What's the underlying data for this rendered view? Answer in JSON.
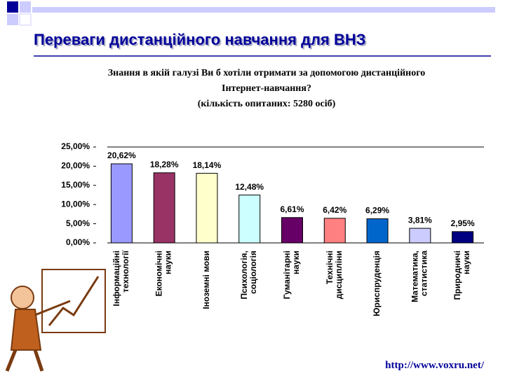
{
  "slide_title": "Переваги дистанційного навчання для ВНЗ",
  "url": "http://www.voxru.net/",
  "chart_data": {
    "type": "bar",
    "title": "Знання в якій галузі Ви б хотіли отримати за допомогою дистанційного Інтернет-навчання?",
    "subtitle": "(кількість опитаних: 5280 осіб)",
    "categories": [
      "Інформаційні\nтехнології",
      "Економічні\nнауки",
      "Іноземні мови",
      "Психологія,\nсоціологія",
      "Гуманітарні\nнауки",
      "Технічні\nдисципліни",
      "Юриспруденція",
      "Математика,\nстатистика",
      "Природничі\nнауки"
    ],
    "values": [
      20.62,
      18.28,
      18.14,
      12.48,
      6.61,
      6.42,
      6.29,
      3.81,
      2.95
    ],
    "value_labels": [
      "20,62%",
      "18,28%",
      "18,14%",
      "12,48%",
      "6,61%",
      "6,42%",
      "6,29%",
      "3,81%",
      "2,95%"
    ],
    "colors": [
      "#9999ff",
      "#993366",
      "#ffffcc",
      "#ccffff",
      "#660066",
      "#ff8080",
      "#0066cc",
      "#ccccff",
      "#000080"
    ],
    "ylim": [
      0,
      25
    ],
    "yticks": [
      {
        "value": 0,
        "label": "0,00%"
      },
      {
        "value": 5,
        "label": "5,00%"
      },
      {
        "value": 10,
        "label": "10,00%"
      },
      {
        "value": 15,
        "label": "15,00%"
      },
      {
        "value": 20,
        "label": "20,00%"
      },
      {
        "value": 25,
        "label": "25,00%"
      }
    ],
    "grid": false
  }
}
